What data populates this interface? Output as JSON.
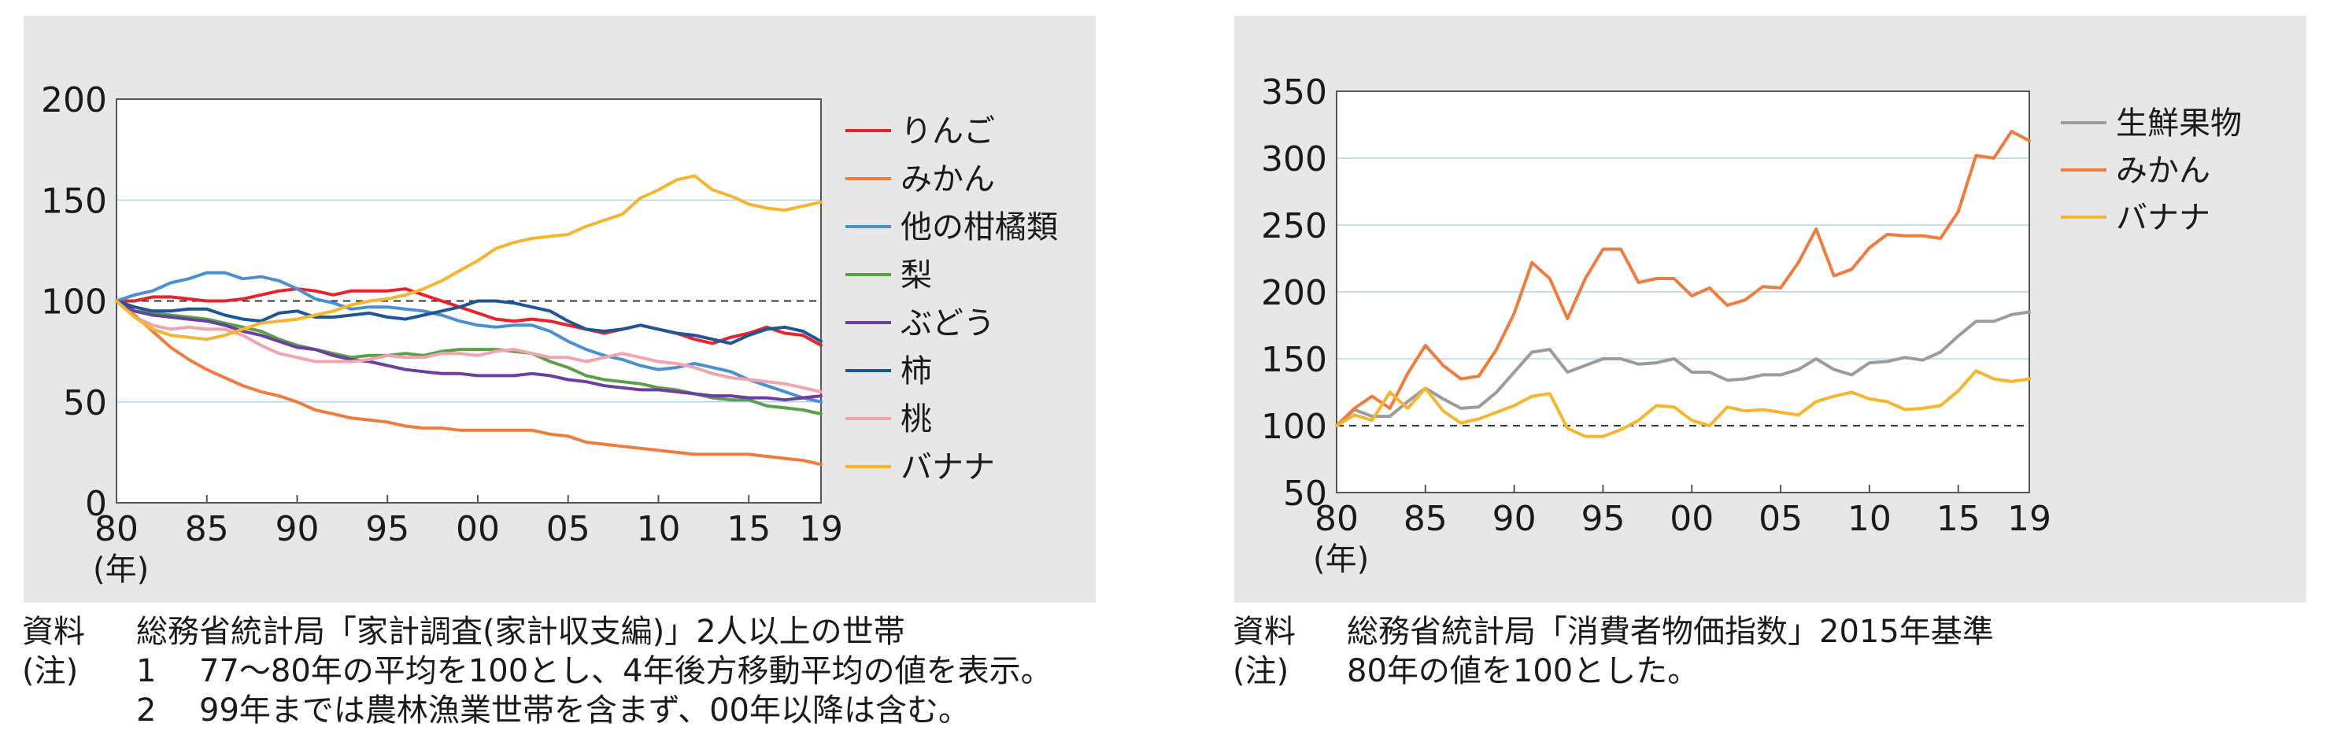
{
  "chart_data": [
    {
      "type": "line",
      "x_unit_label": "(年)",
      "x": [
        1980,
        1981,
        1982,
        1983,
        1984,
        1985,
        1986,
        1987,
        1988,
        1989,
        1990,
        1991,
        1992,
        1993,
        1994,
        1995,
        1996,
        1997,
        1998,
        1999,
        2000,
        2001,
        2002,
        2003,
        2004,
        2005,
        2006,
        2007,
        2008,
        2009,
        2010,
        2011,
        2012,
        2013,
        2014,
        2015,
        2016,
        2017,
        2018,
        2019
      ],
      "x_ticks": [
        1980,
        1985,
        1990,
        1995,
        2000,
        2005,
        2010,
        2015,
        2019
      ],
      "x_tick_labels": [
        "80",
        "85",
        "90",
        "95",
        "00",
        "05",
        "10",
        "15",
        "19"
      ],
      "ylim": [
        0,
        200
      ],
      "y_ticks": [
        0,
        50,
        100,
        150,
        200
      ],
      "y_tick_labels": [
        "0",
        "50",
        "100",
        "150",
        "200"
      ],
      "reference_line": 100,
      "series": [
        {
          "name": "りんご",
          "color": "#e8232a",
          "values": [
            100,
            100,
            102,
            102,
            101,
            100,
            100,
            101,
            103,
            105,
            106,
            105,
            103,
            105,
            105,
            105,
            106,
            103,
            100,
            97,
            94,
            91,
            90,
            91,
            90,
            88,
            86,
            84,
            86,
            88,
            86,
            84,
            81,
            79,
            82,
            84,
            87,
            84,
            83,
            78
          ]
        },
        {
          "name": "みかん",
          "color": "#ef7b3e",
          "values": [
            100,
            93,
            85,
            77,
            71,
            66,
            62,
            58,
            55,
            53,
            50,
            46,
            44,
            42,
            41,
            40,
            38,
            37,
            37,
            36,
            36,
            36,
            36,
            36,
            34,
            33,
            30,
            29,
            28,
            27,
            26,
            25,
            24,
            24,
            24,
            24,
            23,
            22,
            21,
            19
          ]
        },
        {
          "name": "他の柑橘類",
          "color": "#4a8fd3",
          "values": [
            100,
            103,
            105,
            109,
            111,
            114,
            114,
            111,
            112,
            110,
            106,
            101,
            99,
            96,
            97,
            97,
            96,
            95,
            93,
            90,
            88,
            87,
            88,
            88,
            85,
            80,
            76,
            73,
            71,
            68,
            66,
            67,
            69,
            67,
            65,
            61,
            58,
            55,
            52,
            50
          ]
        },
        {
          "name": "梨",
          "color": "#5aa04a",
          "values": [
            100,
            95,
            94,
            93,
            92,
            91,
            89,
            87,
            85,
            81,
            78,
            76,
            74,
            72,
            73,
            73,
            74,
            73,
            75,
            76,
            76,
            76,
            75,
            74,
            70,
            67,
            63,
            61,
            60,
            59,
            57,
            56,
            54,
            52,
            51,
            51,
            48,
            47,
            46,
            44
          ]
        },
        {
          "name": "ぶどう",
          "color": "#6a3fa0",
          "values": [
            100,
            95,
            93,
            92,
            91,
            90,
            88,
            85,
            83,
            80,
            77,
            76,
            73,
            71,
            70,
            68,
            66,
            65,
            64,
            64,
            63,
            63,
            63,
            64,
            63,
            61,
            60,
            58,
            57,
            56,
            56,
            55,
            54,
            53,
            53,
            52,
            52,
            51,
            52,
            53
          ]
        },
        {
          "name": "柿",
          "color": "#1f5596",
          "values": [
            100,
            97,
            95,
            95,
            96,
            96,
            93,
            91,
            90,
            94,
            95,
            92,
            92,
            93,
            94,
            92,
            91,
            93,
            95,
            97,
            100,
            100,
            99,
            97,
            95,
            90,
            86,
            85,
            86,
            88,
            86,
            84,
            83,
            81,
            79,
            83,
            86,
            87,
            85,
            80
          ]
        },
        {
          "name": "桃",
          "color": "#f2a3ad",
          "values": [
            100,
            92,
            88,
            86,
            87,
            86,
            86,
            83,
            78,
            74,
            72,
            70,
            70,
            70,
            71,
            73,
            72,
            72,
            74,
            74,
            73,
            75,
            76,
            74,
            72,
            72,
            70,
            72,
            74,
            72,
            70,
            69,
            67,
            64,
            62,
            61,
            60,
            59,
            57,
            55
          ]
        },
        {
          "name": "バナナ",
          "color": "#f6b52e",
          "values": [
            100,
            92,
            86,
            83,
            82,
            81,
            83,
            86,
            89,
            90,
            91,
            93,
            95,
            98,
            100,
            101,
            103,
            106,
            110,
            115,
            120,
            126,
            129,
            131,
            132,
            133,
            137,
            140,
            143,
            151,
            155,
            160,
            162,
            155,
            152,
            148,
            146,
            145,
            147,
            149
          ]
        }
      ]
    },
    {
      "type": "line",
      "x_unit_label": "(年)",
      "x": [
        1980,
        1981,
        1982,
        1983,
        1984,
        1985,
        1986,
        1987,
        1988,
        1989,
        1990,
        1991,
        1992,
        1993,
        1994,
        1995,
        1996,
        1997,
        1998,
        1999,
        2000,
        2001,
        2002,
        2003,
        2004,
        2005,
        2006,
        2007,
        2008,
        2009,
        2010,
        2011,
        2012,
        2013,
        2014,
        2015,
        2016,
        2017,
        2018,
        2019
      ],
      "x_ticks": [
        1980,
        1985,
        1990,
        1995,
        2000,
        2005,
        2010,
        2015,
        2019
      ],
      "x_tick_labels": [
        "80",
        "85",
        "90",
        "95",
        "00",
        "05",
        "10",
        "15",
        "19"
      ],
      "ylim": [
        50,
        350
      ],
      "y_ticks": [
        50,
        100,
        150,
        200,
        250,
        300,
        350
      ],
      "y_tick_labels": [
        "50",
        "100",
        "150",
        "200",
        "250",
        "300",
        "350"
      ],
      "reference_line": 100,
      "series": [
        {
          "name": "生鮮果物",
          "color": "#9b9b9b",
          "values": [
            100,
            112,
            107,
            107,
            118,
            128,
            120,
            113,
            114,
            125,
            140,
            155,
            157,
            140,
            145,
            150,
            150,
            146,
            147,
            150,
            140,
            140,
            134,
            135,
            138,
            138,
            142,
            150,
            142,
            138,
            147,
            148,
            151,
            149,
            155,
            167,
            178,
            178,
            183,
            185
          ]
        },
        {
          "name": "みかん",
          "color": "#ef7b3e",
          "values": [
            100,
            113,
            122,
            113,
            139,
            160,
            145,
            135,
            137,
            157,
            184,
            222,
            210,
            180,
            210,
            232,
            232,
            207,
            210,
            210,
            197,
            203,
            190,
            194,
            204,
            203,
            222,
            247,
            212,
            217,
            233,
            243,
            242,
            242,
            240,
            260,
            302,
            300,
            320,
            313
          ]
        },
        {
          "name": "バナナ",
          "color": "#f6b52e",
          "values": [
            100,
            108,
            104,
            125,
            113,
            128,
            111,
            102,
            105,
            110,
            115,
            122,
            124,
            98,
            92,
            92,
            97,
            104,
            115,
            114,
            104,
            100,
            114,
            111,
            112,
            110,
            108,
            118,
            122,
            125,
            120,
            118,
            112,
            113,
            115,
            126,
            141,
            135,
            133,
            135
          ]
        }
      ]
    }
  ],
  "notes_left": {
    "source_label": "資料",
    "source_text": "総務省統計局「家計調査(家計収支編)」2人以上の世帯",
    "note_label": "(注)",
    "note1_num": "1",
    "note1_text": "77～80年の平均を100とし、4年後方移動平均の値を表示。",
    "note2_num": "2",
    "note2_text": "99年までは農林漁業世帯を含まず、00年以降は含む。"
  },
  "notes_right": {
    "source_label": "資料",
    "source_text": "総務省統計局「消費者物価指数」2015年基準",
    "note_label": "(注)",
    "note_text": "80年の値を100とした。"
  }
}
